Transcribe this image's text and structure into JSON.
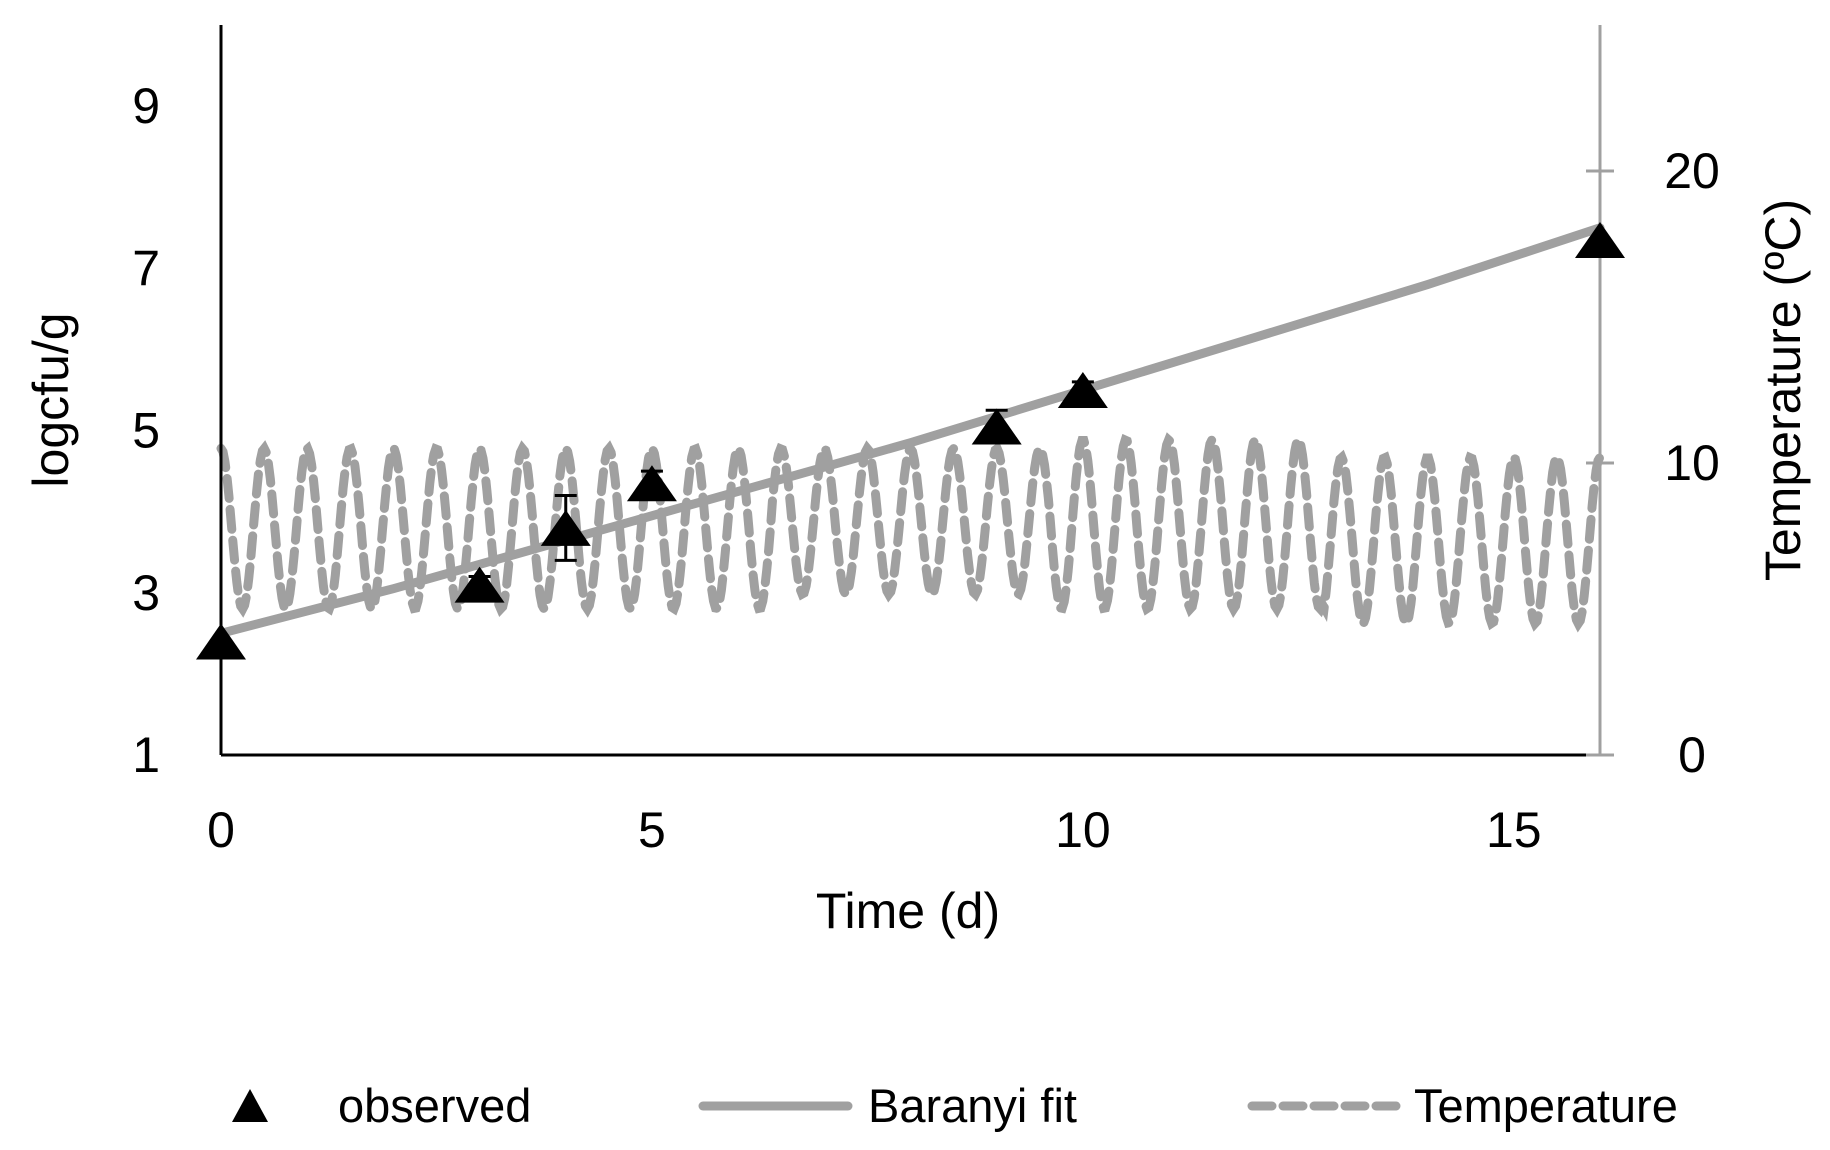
{
  "chart_data": {
    "type": "line",
    "x_axis": {
      "label": "Time (d)",
      "range": [
        0,
        16
      ],
      "ticks": [
        0,
        5,
        10,
        15
      ],
      "tick_labels": [
        "0",
        "5",
        "10",
        "15"
      ]
    },
    "y_axis_left": {
      "label": "logcfu/g",
      "range": [
        1,
        10
      ],
      "ticks": [
        1,
        3,
        5,
        7,
        9
      ],
      "tick_labels": [
        "1",
        "3",
        "5",
        "7",
        "9"
      ]
    },
    "y_axis_right": {
      "label": "Temperature (ºC)",
      "range": [
        0,
        25
      ],
      "ticks": [
        0,
        10,
        20
      ],
      "tick_labels": [
        "0",
        "10",
        "20"
      ]
    },
    "grid": false,
    "legend": {
      "position": "bottom",
      "entries": [
        "observed",
        "Baranyi fit",
        "Temperature"
      ]
    },
    "series": [
      {
        "name": "observed",
        "kind": "scatter",
        "marker": "triangle",
        "color": "#000000",
        "axis": "left",
        "x": [
          0,
          3,
          4,
          5,
          9,
          10,
          16
        ],
        "y": [
          2.4,
          3.1,
          3.8,
          4.35,
          5.05,
          5.5,
          7.35
        ],
        "error": [
          0,
          0.1,
          0.4,
          0.15,
          0.2,
          0.1,
          0
        ]
      },
      {
        "name": "Baranyi fit",
        "kind": "line",
        "color": "#a0a0a0",
        "axis": "left",
        "x": [
          0,
          2,
          4,
          6,
          8,
          10,
          12,
          14,
          16
        ],
        "y": [
          2.5,
          3.05,
          3.65,
          4.25,
          4.85,
          5.5,
          6.15,
          6.8,
          7.5
        ]
      },
      {
        "name": "Temperature",
        "kind": "line",
        "dashed": true,
        "color": "#a0a0a0",
        "axis": "right",
        "x_start": 0,
        "x_end": 16,
        "period_days": 0.5,
        "min_by_segment": [
          5.0,
          5.0,
          5.5,
          5.0,
          4.5
        ],
        "max_by_segment": [
          10.5,
          10.5,
          10.5,
          10.8,
          10.2
        ],
        "segment_length_days": 3.2
      }
    ]
  }
}
